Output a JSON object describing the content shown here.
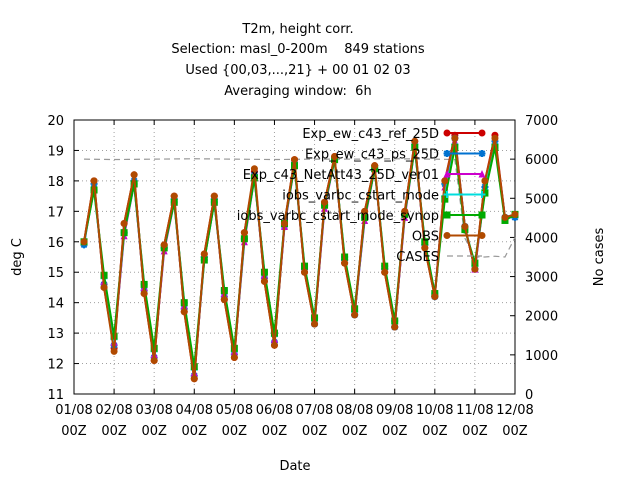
{
  "chart_data": {
    "type": "line",
    "title_lines": [
      "T2m, height corr.",
      "Selection: masl_0-200m    849 stations",
      "Used {00,03,...,21} + 00 01 02 03",
      "Averaging window:  6h"
    ],
    "xlabel": "Date",
    "ylabel": "deg C",
    "y2label": "No cases",
    "x_ticks": [
      "01/08\n00Z",
      "02/08\n00Z",
      "03/08\n00Z",
      "04/08\n00Z",
      "05/08\n00Z",
      "06/08\n00Z",
      "07/08\n00Z",
      "08/08\n00Z",
      "09/08\n00Z",
      "10/08\n00Z",
      "11/08\n00Z",
      "12/08\n00Z"
    ],
    "xlim": [
      0,
      11
    ],
    "ylim": [
      11,
      20
    ],
    "y_ticks": [
      11,
      12,
      13,
      14,
      15,
      16,
      17,
      18,
      19,
      20
    ],
    "y2lim": [
      0,
      7000
    ],
    "y2_ticks": [
      0,
      1000,
      2000,
      3000,
      4000,
      5000,
      6000,
      7000
    ],
    "legend_position": "top-right",
    "x": [
      0.25,
      0.5,
      0.75,
      1.0,
      1.25,
      1.5,
      1.75,
      2.0,
      2.25,
      2.5,
      2.75,
      3.0,
      3.25,
      3.5,
      3.75,
      4.0,
      4.25,
      4.5,
      4.75,
      5.0,
      5.25,
      5.5,
      5.75,
      6.0,
      6.25,
      6.5,
      6.75,
      7.0,
      7.25,
      7.5,
      7.75,
      8.0,
      8.25,
      8.5,
      8.75,
      9.0,
      9.25,
      9.5,
      9.75,
      10.0,
      10.25,
      10.5,
      10.75,
      11.0
    ],
    "series": [
      {
        "name": "Exp_ew_c43_ref_25D",
        "color": "#cc0000",
        "marker": "circle",
        "values": [
          16.0,
          18.0,
          14.5,
          12.5,
          16.6,
          18.2,
          14.3,
          12.1,
          15.9,
          17.5,
          13.7,
          11.5,
          15.6,
          17.5,
          14.1,
          12.2,
          16.3,
          18.3,
          14.7,
          12.6,
          16.6,
          18.7,
          15.0,
          13.3,
          17.3,
          18.8,
          15.3,
          13.6,
          17.0,
          18.5,
          15.0,
          13.2,
          17.0,
          19.3,
          15.8,
          14.2,
          18.0,
          19.5,
          16.5,
          15.1,
          18.0,
          19.5,
          16.8,
          16.9
        ]
      },
      {
        "name": "Exp_ew_c43_ps_25D",
        "color": "#0072d0",
        "marker": "star",
        "values": [
          15.9,
          17.9,
          14.6,
          12.6,
          16.3,
          18.0,
          14.4,
          12.2,
          15.8,
          17.4,
          13.8,
          11.6,
          15.5,
          17.4,
          14.2,
          12.3,
          16.1,
          18.2,
          14.8,
          12.7,
          16.5,
          18.6,
          15.1,
          13.3,
          17.2,
          18.7,
          15.4,
          13.6,
          16.8,
          18.4,
          15.1,
          13.2,
          16.9,
          19.2,
          15.9,
          14.2,
          17.9,
          19.4,
          16.5,
          15.1,
          17.8,
          19.3,
          16.8,
          16.8
        ]
      },
      {
        "name": "Exp_c43_NetAtt43_25D_ver01",
        "color": "#cc00cc",
        "marker": "triangle",
        "values": [
          16.0,
          17.8,
          14.7,
          12.7,
          16.2,
          17.9,
          14.5,
          12.3,
          15.7,
          17.3,
          13.9,
          11.7,
          15.4,
          17.3,
          14.3,
          12.4,
          16.0,
          18.1,
          14.9,
          12.8,
          16.5,
          18.5,
          15.1,
          13.4,
          17.1,
          18.7,
          15.4,
          13.7,
          16.7,
          18.4,
          15.1,
          13.3,
          16.8,
          19.1,
          15.9,
          14.3,
          17.8,
          19.3,
          16.5,
          15.1,
          17.7,
          19.2,
          16.8,
          16.9
        ]
      },
      {
        "name": "iobs_varbc_cstart_mode",
        "color": "#00dddd",
        "marker": "cross",
        "values": [
          16.0,
          17.7,
          14.8,
          12.8,
          16.3,
          17.9,
          14.6,
          12.4,
          15.8,
          17.3,
          14.0,
          11.8,
          15.4,
          17.3,
          14.4,
          12.4,
          16.1,
          18.1,
          15.0,
          12.9,
          16.6,
          18.5,
          15.2,
          13.5,
          17.2,
          18.7,
          15.5,
          13.7,
          16.8,
          18.4,
          15.2,
          13.4,
          16.9,
          19.1,
          16.0,
          14.3,
          17.5,
          19.2,
          16.5,
          15.2,
          17.7,
          19.2,
          16.8,
          16.9
        ]
      },
      {
        "name": "iobs_varbc_cstart_mode_synop",
        "color": "#00aa00",
        "marker": "square",
        "values": [
          16.0,
          17.7,
          14.9,
          12.9,
          16.3,
          17.9,
          14.6,
          12.5,
          15.8,
          17.3,
          14.0,
          11.9,
          15.4,
          17.3,
          14.4,
          12.5,
          16.1,
          18.1,
          15.0,
          13.0,
          16.6,
          18.5,
          15.2,
          13.5,
          17.2,
          18.7,
          15.5,
          13.8,
          16.8,
          18.4,
          15.2,
          13.4,
          16.9,
          19.1,
          16.0,
          14.3,
          17.4,
          19.1,
          16.4,
          15.3,
          17.6,
          19.1,
          16.7,
          16.9
        ]
      },
      {
        "name": "OBS",
        "color": "#b04a00",
        "marker": "circle",
        "values": [
          16.0,
          18.0,
          14.5,
          12.4,
          16.6,
          18.2,
          14.3,
          12.1,
          15.9,
          17.5,
          13.7,
          11.5,
          15.6,
          17.5,
          14.1,
          12.2,
          16.3,
          18.4,
          14.7,
          12.6,
          16.6,
          18.7,
          15.0,
          13.3,
          17.3,
          18.8,
          15.3,
          13.6,
          17.0,
          18.5,
          15.0,
          13.2,
          17.0,
          19.3,
          15.8,
          14.2,
          18.0,
          19.4,
          16.5,
          15.1,
          18.0,
          19.4,
          16.8,
          16.9
        ]
      }
    ],
    "cases": {
      "name": "CASES",
      "color": "#999999",
      "x": [
        0.25,
        1.0,
        2.0,
        3.0,
        4.0,
        5.0,
        6.0,
        7.0,
        8.0,
        9.0,
        9.5,
        9.75,
        10.0,
        10.25,
        10.5,
        10.75,
        11.0
      ],
      "values": [
        6000,
        5990,
        6000,
        6010,
        6000,
        5990,
        6000,
        6000,
        6010,
        6000,
        5990,
        3980,
        3500,
        3500,
        3520,
        3500,
        4000
      ]
    }
  }
}
